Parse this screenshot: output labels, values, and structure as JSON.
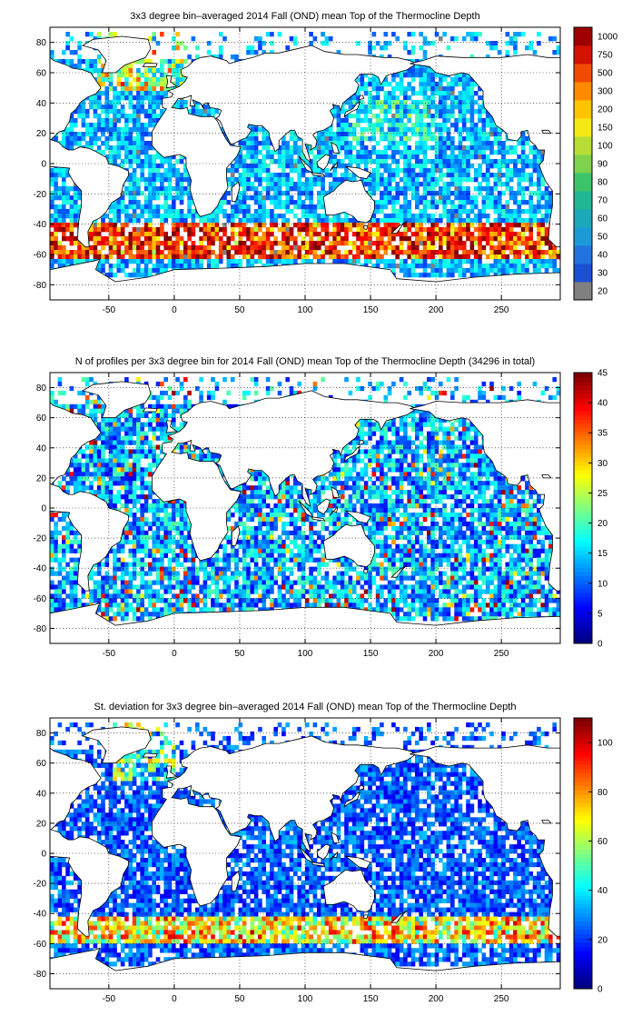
{
  "colors": {
    "land": "#ffffff",
    "missing": "#808080",
    "frame": "#000000",
    "jet_stops": [
      "#00008f",
      "#0000ff",
      "#0080ff",
      "#00ffff",
      "#80ff80",
      "#ffff00",
      "#ff8000",
      "#ff0000",
      "#800000"
    ]
  },
  "chart_data": [
    {
      "type": "heatmap",
      "title": "3x3 degree bin–averaged 2014 Fall (OND) mean Top of the Thermocline Depth",
      "xlabel": "",
      "ylabel": "",
      "xlim": [
        -95,
        295
      ],
      "ylim": [
        -90,
        90
      ],
      "xticks": [
        -50,
        0,
        50,
        100,
        150,
        200,
        250
      ],
      "yticks": [
        80,
        60,
        40,
        20,
        0,
        -20,
        -40,
        -60,
        -80
      ],
      "grid": true,
      "colorbar": {
        "kind": "discrete",
        "labels": [
          "20",
          "30",
          "40",
          "50",
          "60",
          "70",
          "80",
          "90",
          "100",
          "150",
          "200",
          "300",
          "500",
          "750",
          "1000"
        ],
        "colors": [
          "#808080",
          "#1a4fd6",
          "#1f74e0",
          "#1c9ad8",
          "#1aa9b8",
          "#1fb893",
          "#3cc46a",
          "#7fd24b",
          "#b8dd33",
          "#f2ea12",
          "#ffc400",
          "#ff8a00",
          "#f04b00",
          "#d41200",
          "#a00000"
        ]
      }
    },
    {
      "type": "heatmap",
      "title": "N of profiles per 3x3 degree bin for 2014 Fall (OND) mean Top of the Thermocline Depth  (34296 in total)",
      "xlabel": "",
      "ylabel": "",
      "xlim": [
        -95,
        295
      ],
      "ylim": [
        -90,
        90
      ],
      "xticks": [
        -50,
        0,
        50,
        100,
        150,
        200,
        250
      ],
      "yticks": [
        80,
        60,
        40,
        20,
        0,
        -20,
        -40,
        -60,
        -80
      ],
      "grid": true,
      "colorbar": {
        "kind": "continuous",
        "min": 0,
        "max": 45,
        "ticks": [
          0,
          5,
          10,
          15,
          20,
          25,
          30,
          35,
          40,
          45
        ]
      }
    },
    {
      "type": "heatmap",
      "title": "St. deviation for 3x3 degree bin–averaged 2014 Fall (OND) mean Top of the Thermocline Depth",
      "xlabel": "",
      "ylabel": "",
      "xlim": [
        -95,
        295
      ],
      "ylim": [
        -90,
        90
      ],
      "xticks": [
        -50,
        0,
        50,
        100,
        150,
        200,
        250
      ],
      "yticks": [
        80,
        60,
        40,
        20,
        0,
        -20,
        -40,
        -60,
        -80
      ],
      "grid": true,
      "colorbar": {
        "kind": "continuous",
        "min": 0,
        "max": 110,
        "ticks": [
          0,
          20,
          40,
          60,
          80,
          100
        ]
      }
    }
  ]
}
